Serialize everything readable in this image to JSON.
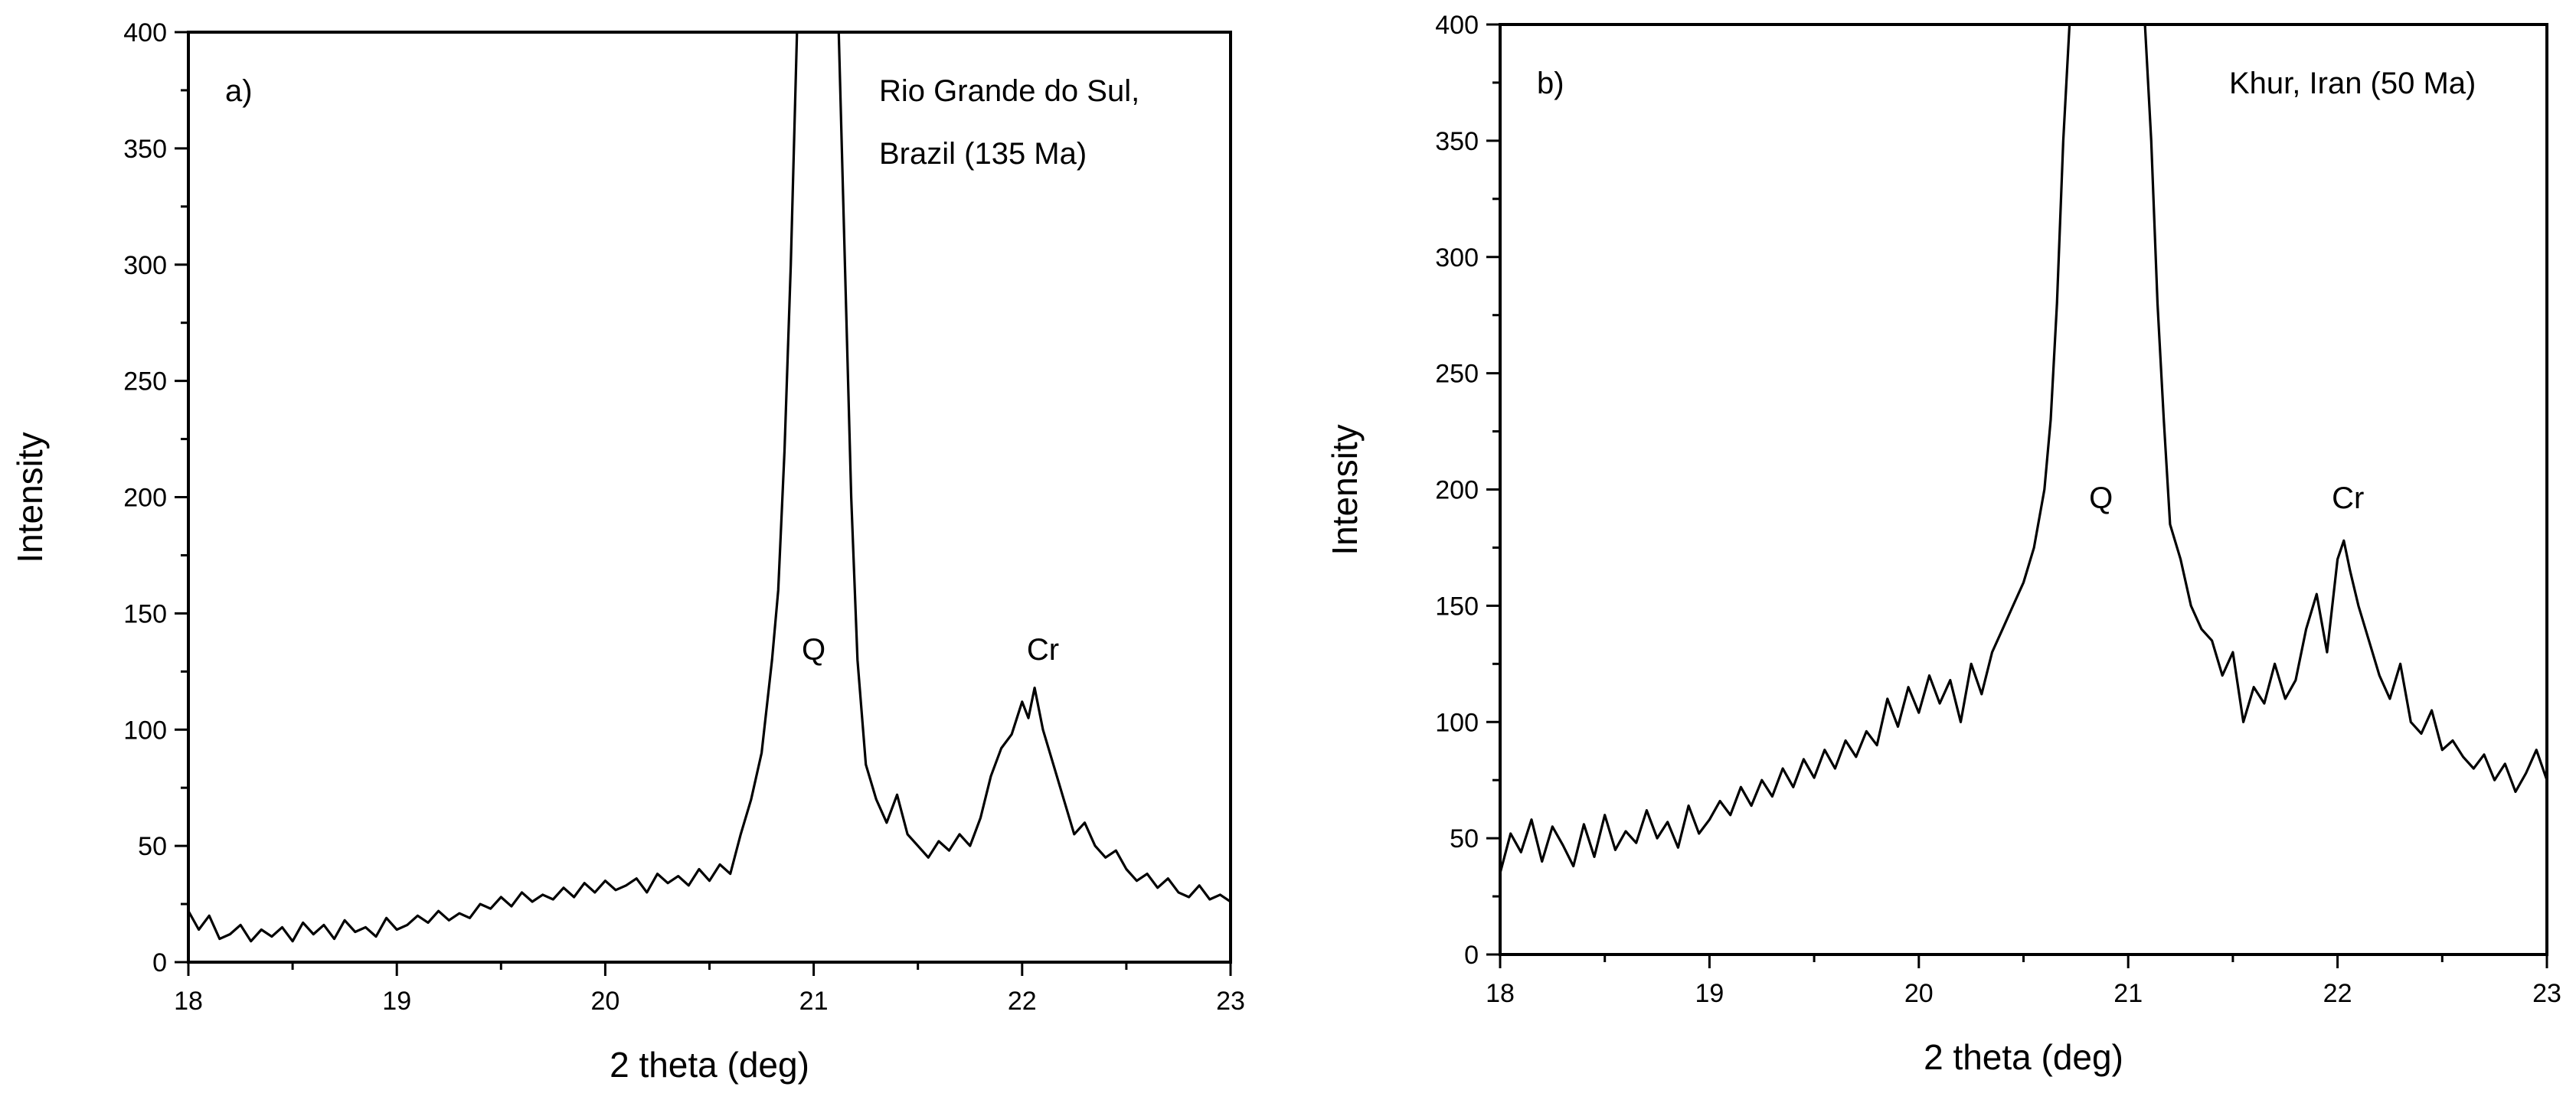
{
  "chart_data": [
    {
      "type": "line",
      "panel_label": "a)",
      "location_label": [
        "Rio Grande do Sul,",
        "Brazil (135 Ma)"
      ],
      "xlabel": "2 theta (deg)",
      "ylabel": "Intensity",
      "xlim": [
        18,
        23
      ],
      "ylim": [
        0,
        400
      ],
      "xticks": [
        "18",
        "19",
        "20",
        "21",
        "22",
        "23"
      ],
      "yticks": [
        "0",
        "50",
        "100",
        "150",
        "200",
        "250",
        "300",
        "350",
        "400"
      ],
      "peak_labels": [
        {
          "text": "Q",
          "x": 21.0,
          "y": 130
        },
        {
          "text": "Cr",
          "x": 22.1,
          "y": 130
        }
      ],
      "series": [
        {
          "x": [
            18.0,
            18.05,
            18.1,
            18.15,
            18.2,
            18.25,
            18.3,
            18.35,
            18.4,
            18.45,
            18.5,
            18.55,
            18.6,
            18.65,
            18.7,
            18.75,
            18.8,
            18.85,
            18.9,
            18.95,
            19.0,
            19.05,
            19.1,
            19.15,
            19.2,
            19.25,
            19.3,
            19.35,
            19.4,
            19.45,
            19.5,
            19.55,
            19.6,
            19.65,
            19.7,
            19.75,
            19.8,
            19.85,
            19.9,
            19.95,
            20.0,
            20.05,
            20.1,
            20.15,
            20.2,
            20.25,
            20.3,
            20.35,
            20.4,
            20.45,
            20.5,
            20.55,
            20.6,
            20.65,
            20.7,
            20.75,
            20.8,
            20.83,
            20.86,
            20.89,
            20.92,
            20.95,
            20.97,
            21.0,
            21.03,
            21.06,
            21.09,
            21.12,
            21.15,
            21.18,
            21.21,
            21.25,
            21.3,
            21.35,
            21.4,
            21.45,
            21.5,
            21.55,
            21.6,
            21.65,
            21.7,
            21.75,
            21.8,
            21.85,
            21.9,
            21.95,
            22.0,
            22.03,
            22.06,
            22.1,
            22.15,
            22.2,
            22.25,
            22.3,
            22.35,
            22.4,
            22.45,
            22.5,
            22.55,
            22.6,
            22.65,
            22.7,
            22.75,
            22.8,
            22.85,
            22.9,
            22.95,
            23.0
          ],
          "y": [
            22,
            14,
            20,
            10,
            12,
            16,
            9,
            14,
            11,
            15,
            9,
            17,
            12,
            16,
            10,
            18,
            13,
            15,
            11,
            19,
            14,
            16,
            20,
            17,
            22,
            18,
            21,
            19,
            25,
            23,
            28,
            24,
            30,
            26,
            29,
            27,
            32,
            28,
            34,
            30,
            35,
            31,
            33,
            36,
            30,
            38,
            34,
            37,
            33,
            40,
            35,
            42,
            38,
            55,
            70,
            90,
            130,
            160,
            220,
            300,
            400,
            400,
            400,
            400,
            400,
            400,
            400,
            400,
            300,
            200,
            130,
            85,
            70,
            60,
            72,
            55,
            50,
            45,
            52,
            48,
            55,
            50,
            62,
            80,
            92,
            98,
            112,
            105,
            118,
            100,
            85,
            70,
            55,
            60,
            50,
            45,
            48,
            40,
            35,
            38,
            32,
            36,
            30,
            28,
            33,
            27,
            29,
            26
          ]
        }
      ]
    },
    {
      "type": "line",
      "panel_label": "b)",
      "location_label": [
        "Khur, Iran (50 Ma)"
      ],
      "xlabel": "2 theta (deg)",
      "ylabel": "Intensity",
      "xlim": [
        18,
        23
      ],
      "ylim": [
        0,
        400
      ],
      "xticks": [
        "18",
        "19",
        "20",
        "21",
        "22",
        "23"
      ],
      "yticks": [
        "0",
        "50",
        "100",
        "150",
        "200",
        "250",
        "300",
        "350",
        "400"
      ],
      "peak_labels": [
        {
          "text": "Q",
          "x": 20.87,
          "y": 192
        },
        {
          "text": "Cr",
          "x": 22.05,
          "y": 192
        }
      ],
      "series": [
        {
          "x": [
            18.0,
            18.05,
            18.1,
            18.15,
            18.2,
            18.25,
            18.3,
            18.35,
            18.4,
            18.45,
            18.5,
            18.55,
            18.6,
            18.65,
            18.7,
            18.75,
            18.8,
            18.85,
            18.9,
            18.95,
            19.0,
            19.05,
            19.1,
            19.15,
            19.2,
            19.25,
            19.3,
            19.35,
            19.4,
            19.45,
            19.5,
            19.55,
            19.6,
            19.65,
            19.7,
            19.75,
            19.8,
            19.85,
            19.9,
            19.95,
            20.0,
            20.05,
            20.1,
            20.15,
            20.2,
            20.25,
            20.3,
            20.35,
            20.4,
            20.45,
            20.5,
            20.55,
            20.6,
            20.63,
            20.66,
            20.69,
            20.72,
            20.75,
            20.8,
            20.85,
            20.9,
            20.95,
            21.0,
            21.05,
            21.08,
            21.11,
            21.14,
            21.17,
            21.2,
            21.25,
            21.3,
            21.35,
            21.4,
            21.45,
            21.5,
            21.55,
            21.6,
            21.65,
            21.7,
            21.75,
            21.8,
            21.85,
            21.9,
            21.95,
            22.0,
            22.03,
            22.06,
            22.1,
            22.15,
            22.2,
            22.25,
            22.3,
            22.35,
            22.4,
            22.45,
            22.5,
            22.55,
            22.6,
            22.65,
            22.7,
            22.75,
            22.8,
            22.85,
            22.9,
            22.95,
            23.0
          ],
          "y": [
            35,
            52,
            44,
            58,
            40,
            55,
            47,
            38,
            56,
            42,
            60,
            45,
            53,
            48,
            62,
            50,
            57,
            46,
            64,
            52,
            58,
            66,
            60,
            72,
            64,
            75,
            68,
            80,
            72,
            84,
            76,
            88,
            80,
            92,
            85,
            96,
            90,
            110,
            98,
            115,
            104,
            120,
            108,
            118,
            100,
            125,
            112,
            130,
            140,
            150,
            160,
            175,
            200,
            230,
            280,
            350,
            400,
            400,
            400,
            400,
            400,
            400,
            400,
            400,
            400,
            350,
            280,
            230,
            185,
            170,
            150,
            140,
            135,
            120,
            130,
            100,
            115,
            108,
            125,
            110,
            118,
            140,
            155,
            130,
            170,
            178,
            165,
            150,
            135,
            120,
            110,
            125,
            100,
            95,
            105,
            88,
            92,
            85,
            80,
            86,
            75,
            82,
            70,
            78,
            88,
            75
          ]
        }
      ]
    }
  ]
}
